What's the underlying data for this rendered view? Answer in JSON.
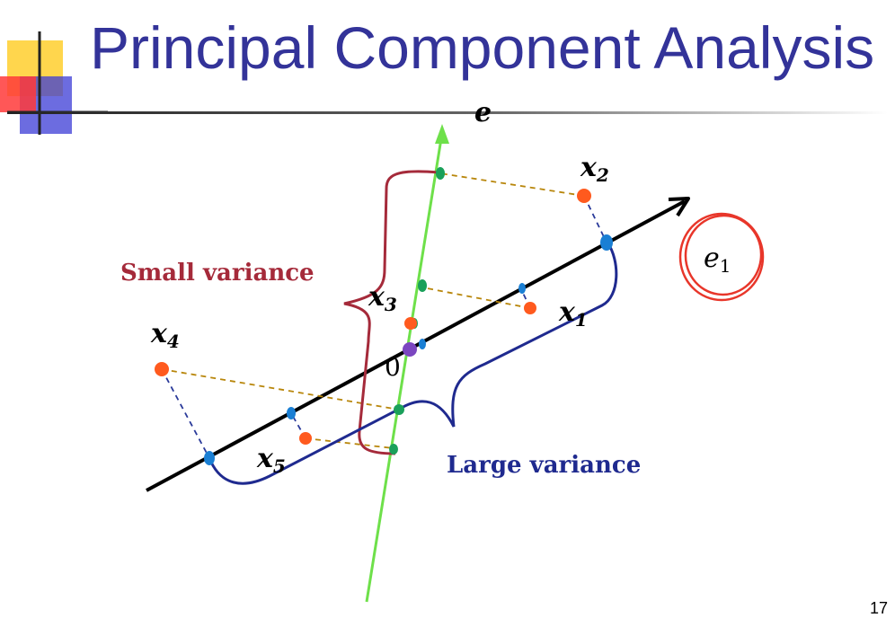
{
  "slide": {
    "title": "Principal Component Analysis",
    "page_number": "17"
  },
  "labels": {
    "e": "e",
    "e1": "e1",
    "x1": "x1",
    "x2": "x2",
    "x3": "x3",
    "x4": "x4",
    "x5": "x5",
    "origin": "0",
    "small_variance": "Small variance",
    "large_variance": "Large variance"
  },
  "colors": {
    "title": "#333399",
    "green_axis": "#6ee04a",
    "black_axis": "#000000",
    "data_point": "#ff5a1e",
    "projection_point": "#1a7fd4",
    "green_projection": "#1aa05a",
    "origin_point": "#7b46c0",
    "small_variance": "#a52a3a",
    "large_variance": "#1f2a8f",
    "circle_annotation": "#e8362a",
    "dashed_brown": "#b8860b",
    "dashed_blue": "#2a3a9a"
  },
  "icons": {
    "decoration": "corner-square-decoration"
  }
}
